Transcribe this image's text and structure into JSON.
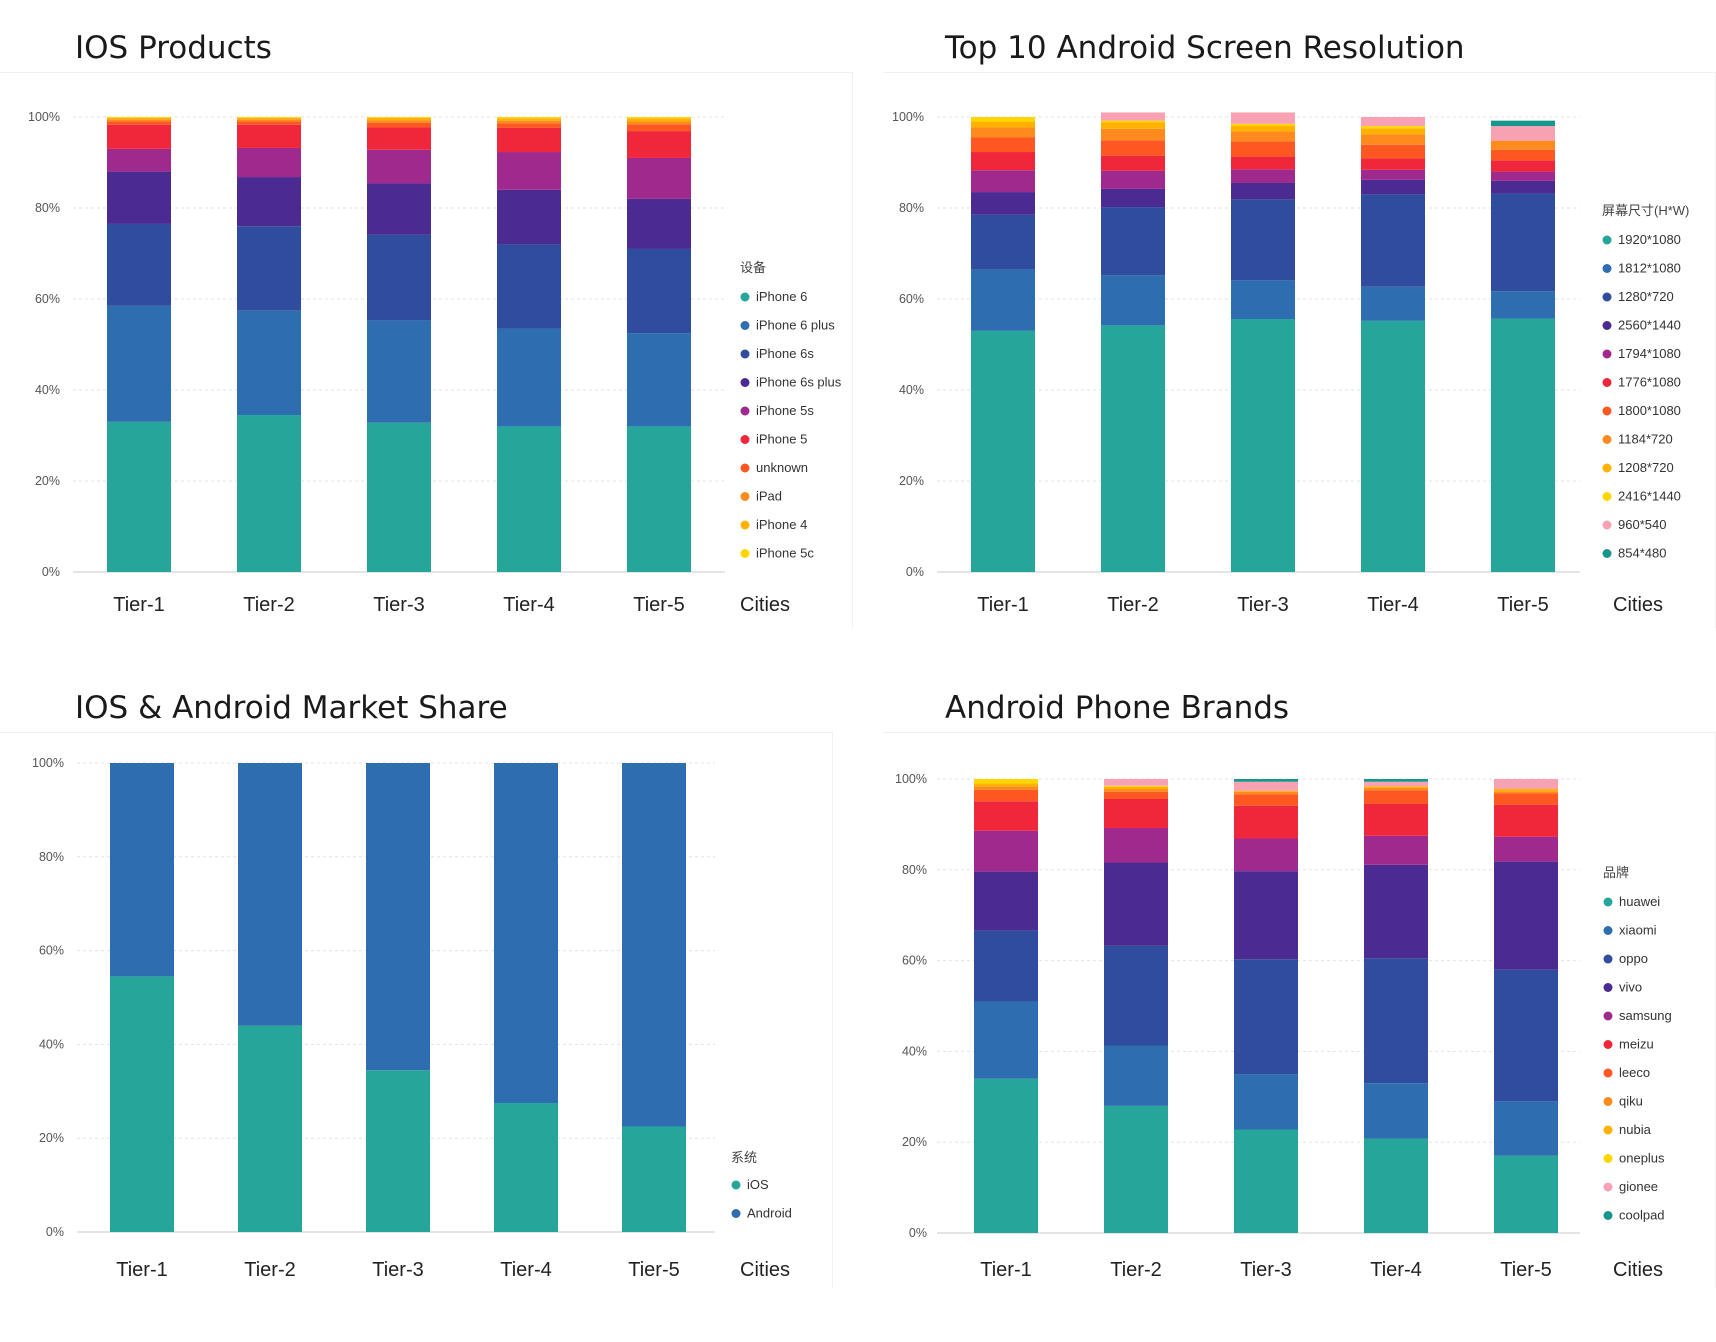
{
  "chart_data": [
    {
      "type": "bar",
      "stacked": true,
      "title": "IOS Products",
      "xlabel": "Cities",
      "ylabel": "",
      "ylim": [
        0,
        100
      ],
      "yticks": [
        "0%",
        "20%",
        "40%",
        "60%",
        "80%",
        "100%"
      ],
      "grid": true,
      "legend_title": "设备",
      "legend_position": "right",
      "categories": [
        "Tier-1",
        "Tier-2",
        "Tier-3",
        "Tier-4",
        "Tier-5"
      ],
      "series": [
        {
          "name": "iPhone 6",
          "color": "#26a69a",
          "values": [
            33,
            34.5,
            32.8,
            32,
            32
          ]
        },
        {
          "name": "iPhone 6 plus",
          "color": "#2e6db0",
          "values": [
            25.5,
            23,
            22.5,
            21.5,
            20.5
          ]
        },
        {
          "name": "iPhone 6s",
          "color": "#2f4c9e",
          "values": [
            18,
            18.5,
            18.8,
            18.5,
            18.5
          ]
        },
        {
          "name": "iPhone 6s plus",
          "color": "#4b2a91",
          "values": [
            11.5,
            10.8,
            11.3,
            12,
            11
          ]
        },
        {
          "name": "iPhone 5s",
          "color": "#a0298e",
          "values": [
            5,
            6.4,
            7.4,
            8.3,
            9
          ]
        },
        {
          "name": "iPhone 5",
          "color": "#f0263a",
          "values": [
            5.3,
            5.1,
            4.9,
            5.3,
            5.9
          ]
        },
        {
          "name": "unknown",
          "color": "#ff5722",
          "values": [
            0.7,
            0.7,
            1,
            1,
            1.5
          ]
        },
        {
          "name": "iPad",
          "color": "#ff8a1e",
          "values": [
            0.5,
            0.5,
            0.6,
            0.6,
            0.6
          ]
        },
        {
          "name": "iPhone 4",
          "color": "#ffb300",
          "values": [
            0.3,
            0.3,
            0.5,
            0.5,
            0.7
          ]
        },
        {
          "name": "iPhone 5c",
          "color": "#ffd600",
          "values": [
            0.2,
            0.2,
            0.2,
            0.3,
            0.3
          ]
        }
      ]
    },
    {
      "type": "bar",
      "stacked": true,
      "title": "Top 10 Android Screen Resolution",
      "xlabel": "Cities",
      "ylabel": "",
      "ylim": [
        0,
        100
      ],
      "yticks": [
        "0%",
        "20%",
        "40%",
        "60%",
        "80%",
        "100%"
      ],
      "grid": true,
      "legend_title": "屏幕尺寸(H*W)",
      "legend_position": "right",
      "categories": [
        "Tier-1",
        "Tier-2",
        "Tier-3",
        "Tier-4",
        "Tier-5"
      ],
      "series": [
        {
          "name": "1920*1080",
          "color": "#26a69a",
          "values": [
            53,
            54.2,
            55.6,
            55.2,
            55.7
          ]
        },
        {
          "name": "1812*1080",
          "color": "#2e6db0",
          "values": [
            13.5,
            11,
            8.5,
            7.5,
            6
          ]
        },
        {
          "name": "1280*720",
          "color": "#2f4c9e",
          "values": [
            12,
            15,
            17.8,
            20.3,
            21.5
          ]
        },
        {
          "name": "2560*1440",
          "color": "#4b2a91",
          "values": [
            5,
            4,
            3.6,
            3.2,
            2.8
          ]
        },
        {
          "name": "1794*1080",
          "color": "#a0298e",
          "values": [
            4.8,
            4,
            3,
            2.2,
            2
          ]
        },
        {
          "name": "1776*1080",
          "color": "#f0263a",
          "values": [
            4,
            3.3,
            2.8,
            2.5,
            2.5
          ]
        },
        {
          "name": "1800*1080",
          "color": "#ff5722",
          "values": [
            3.2,
            3.4,
            3.3,
            3,
            2.3
          ]
        },
        {
          "name": "1184*720",
          "color": "#ff8a1e",
          "values": [
            2.2,
            2.5,
            2.2,
            2.3,
            2
          ]
        },
        {
          "name": "1208*720",
          "color": "#ffb300",
          "values": [
            1.3,
            1.4,
            1.3,
            1.3,
            0
          ]
        },
        {
          "name": "2416*1440",
          "color": "#ffd600",
          "values": [
            1,
            0.4,
            0.4,
            0.5,
            0
          ]
        },
        {
          "name": "960*540",
          "color": "#f8a1b3",
          "values": [
            0,
            1.8,
            2.5,
            2,
            3.2
          ]
        },
        {
          "name": "854*480",
          "color": "#18968c",
          "values": [
            0,
            0,
            0,
            0,
            1.2
          ]
        }
      ]
    },
    {
      "type": "bar",
      "stacked": true,
      "title": "IOS & Android Market Share",
      "xlabel": "Cities",
      "ylabel": "",
      "ylim": [
        0,
        100
      ],
      "yticks": [
        "0%",
        "20%",
        "40%",
        "60%",
        "80%",
        "100%"
      ],
      "grid": true,
      "legend_title": "系统",
      "legend_position": "right",
      "categories": [
        "Tier-1",
        "Tier-2",
        "Tier-3",
        "Tier-4",
        "Tier-5"
      ],
      "series": [
        {
          "name": "iOS",
          "color": "#26a69a",
          "values": [
            54.5,
            44,
            34.5,
            27.5,
            22.5
          ]
        },
        {
          "name": "Android",
          "color": "#2e6db0",
          "values": [
            45.5,
            56,
            65.5,
            72.5,
            77.5
          ]
        }
      ]
    },
    {
      "type": "bar",
      "stacked": true,
      "title": "Android Phone Brands",
      "xlabel": "Cities",
      "ylabel": "",
      "ylim": [
        0,
        100
      ],
      "yticks": [
        "0%",
        "20%",
        "40%",
        "60%",
        "80%",
        "100%"
      ],
      "grid": true,
      "legend_title": "品牌",
      "legend_position": "right",
      "categories": [
        "Tier-1",
        "Tier-2",
        "Tier-3",
        "Tier-4",
        "Tier-5"
      ],
      "series": [
        {
          "name": "huawei",
          "color": "#26a69a",
          "values": [
            34,
            28,
            22.8,
            20.8,
            17
          ]
        },
        {
          "name": "xiaomi",
          "color": "#2e6db0",
          "values": [
            17,
            13.3,
            12.2,
            12.2,
            12
          ]
        },
        {
          "name": "oppo",
          "color": "#2f4c9e",
          "values": [
            15.6,
            22,
            25.3,
            27.5,
            29
          ]
        },
        {
          "name": "vivo",
          "color": "#4b2a91",
          "values": [
            13,
            18.3,
            19.4,
            20.6,
            23.8
          ]
        },
        {
          "name": "samsung",
          "color": "#a0298e",
          "values": [
            9,
            7.6,
            7.2,
            6.4,
            5.5
          ]
        },
        {
          "name": "meizu",
          "color": "#f0263a",
          "values": [
            6.5,
            6.4,
            7.2,
            7,
            7
          ]
        },
        {
          "name": "leeco",
          "color": "#ff5722",
          "values": [
            2.5,
            1.6,
            2.5,
            3,
            2.5
          ]
        },
        {
          "name": "qiku",
          "color": "#ff8a1e",
          "values": [
            0.8,
            0.6,
            0.6,
            0.6,
            0.5
          ]
        },
        {
          "name": "nubia",
          "color": "#ffb300",
          "values": [
            0.6,
            0.5,
            0.2,
            0.3,
            0.5
          ]
        },
        {
          "name": "oneplus",
          "color": "#ffd600",
          "values": [
            1,
            0.2,
            0,
            0,
            0
          ]
        },
        {
          "name": "gionee",
          "color": "#f8a1b3",
          "values": [
            0,
            1.5,
            2,
            1,
            2.2
          ]
        },
        {
          "name": "coolpad",
          "color": "#18968c",
          "values": [
            0,
            0,
            0.6,
            0.6,
            0
          ]
        }
      ]
    }
  ]
}
